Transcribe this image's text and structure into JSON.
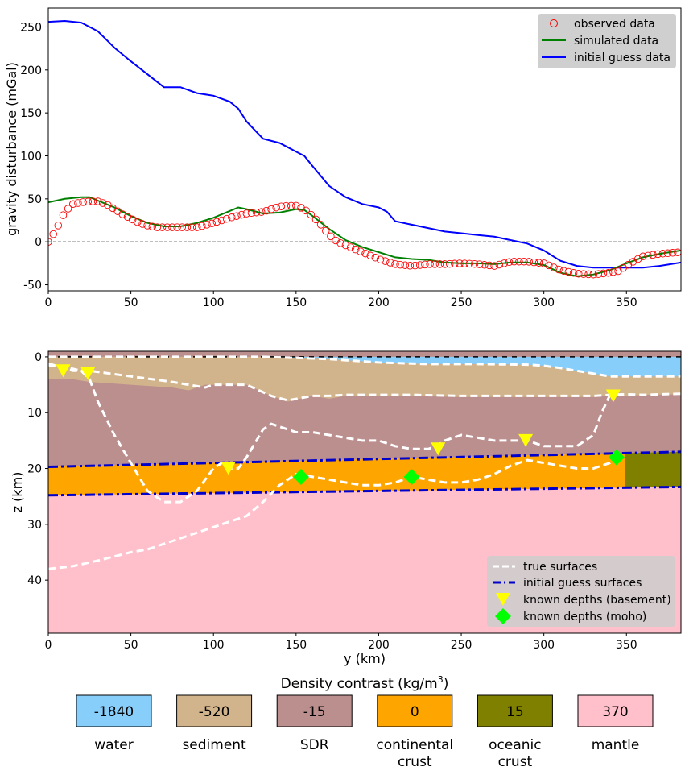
{
  "chart_data": [
    {
      "type": "line",
      "ylabel": "gravity disturbance (mGal)",
      "xlim": [
        0,
        383
      ],
      "ylim": [
        -57,
        272
      ],
      "xticks": [
        "0",
        "50",
        "100",
        "150",
        "200",
        "250",
        "300",
        "350"
      ],
      "yticks": [
        "250",
        "200",
        "150",
        "100",
        "50",
        "0",
        "-50"
      ],
      "legend_position": "top-right",
      "zero_line": true,
      "series": [
        {
          "name": "observed data",
          "style": "open-circle",
          "color": "#ff0000",
          "x": [
            0,
            5,
            10,
            15,
            20,
            25,
            30,
            35,
            40,
            45,
            50,
            55,
            60,
            65,
            70,
            80,
            90,
            100,
            110,
            120,
            130,
            135,
            140,
            145,
            150,
            155,
            160,
            165,
            170,
            175,
            180,
            185,
            190,
            195,
            200,
            205,
            210,
            220,
            230,
            240,
            250,
            260,
            270,
            280,
            290,
            300,
            310,
            320,
            330,
            340,
            345,
            350,
            355,
            360,
            370,
            383
          ],
          "y": [
            0,
            15,
            35,
            44,
            46,
            47,
            47,
            44,
            38,
            32,
            27,
            22,
            19,
            17,
            17,
            17,
            17,
            22,
            28,
            33,
            35,
            38,
            41,
            42,
            42,
            38,
            30,
            20,
            8,
            0,
            -4,
            -8,
            -12,
            -16,
            -20,
            -23,
            -26,
            -28,
            -26,
            -26,
            -25,
            -26,
            -28,
            -23,
            -23,
            -25,
            -33,
            -37,
            -38,
            -36,
            -34,
            -28,
            -22,
            -17,
            -14,
            -12
          ]
        },
        {
          "name": "simulated data",
          "style": "line",
          "color": "#008000",
          "x": [
            0,
            10,
            20,
            25,
            30,
            40,
            50,
            60,
            70,
            80,
            90,
            100,
            110,
            115,
            120,
            130,
            140,
            150,
            155,
            160,
            170,
            180,
            190,
            200,
            210,
            220,
            230,
            240,
            250,
            260,
            270,
            280,
            290,
            300,
            310,
            320,
            330,
            340,
            350,
            360,
            370,
            383
          ],
          "y": [
            46,
            50,
            52,
            52,
            48,
            40,
            30,
            22,
            18,
            18,
            22,
            28,
            36,
            40,
            38,
            33,
            34,
            38,
            37,
            30,
            15,
            2,
            -6,
            -12,
            -18,
            -20,
            -21,
            -24,
            -25,
            -25,
            -26,
            -24,
            -24,
            -27,
            -36,
            -40,
            -38,
            -33,
            -25,
            -18,
            -14,
            -10
          ]
        },
        {
          "name": "initial guess data",
          "style": "line",
          "color": "#0000ff",
          "x": [
            0,
            10,
            20,
            30,
            40,
            50,
            60,
            70,
            80,
            90,
            100,
            110,
            115,
            120,
            125,
            130,
            140,
            145,
            150,
            155,
            160,
            170,
            180,
            190,
            200,
            205,
            210,
            220,
            230,
            240,
            250,
            260,
            270,
            280,
            290,
            300,
            310,
            320,
            330,
            340,
            350,
            360,
            370,
            383
          ],
          "y": [
            256,
            257,
            255,
            245,
            226,
            210,
            195,
            180,
            180,
            173,
            170,
            163,
            155,
            140,
            130,
            120,
            115,
            110,
            105,
            100,
            88,
            65,
            52,
            44,
            40,
            35,
            24,
            20,
            16,
            12,
            10,
            8,
            6,
            2,
            -2,
            -10,
            -22,
            -28,
            -30,
            -30,
            -30,
            -30,
            -28,
            -24
          ]
        }
      ]
    },
    {
      "type": "area",
      "xlabel": "y (km)",
      "ylabel": "z (km)",
      "xlim": [
        0,
        383
      ],
      "ylim": [
        49.5,
        -1
      ],
      "xticks": [
        "0",
        "50",
        "100",
        "150",
        "200",
        "250",
        "300",
        "350"
      ],
      "yticks": [
        "0",
        "10",
        "20",
        "30",
        "40"
      ],
      "legend_position": "bottom-right",
      "layers": [
        {
          "name": "water",
          "color": "#87cefa"
        },
        {
          "name": "sediment",
          "color": "#d2b48c"
        },
        {
          "name": "SDR",
          "color": "#bc8f8f"
        },
        {
          "name": "continental crust",
          "color": "#ffa500"
        },
        {
          "name": "oceanic crust",
          "color": "#808000"
        },
        {
          "name": "mantle",
          "color": "#ffc0cb"
        }
      ],
      "water_bottom": {
        "x": [
          0,
          100,
          130,
          150,
          170,
          200,
          230,
          260,
          290,
          300,
          310,
          320,
          340,
          360,
          383
        ],
        "y": [
          0,
          0,
          0,
          0.2,
          0.4,
          1.0,
          1.3,
          1.3,
          1.4,
          1.6,
          2.0,
          2.5,
          3.5,
          3.5,
          3.5
        ]
      },
      "sediment_bottom": {
        "x": [
          0,
          15,
          25,
          50,
          75,
          85,
          95,
          100,
          120,
          135,
          145,
          160,
          170,
          180,
          200,
          220,
          250,
          300,
          330,
          340,
          350,
          360,
          383
        ],
        "y": [
          4,
          4,
          4.5,
          5,
          5.5,
          6,
          5,
          5,
          5,
          7,
          8,
          7,
          7.5,
          7,
          7,
          7,
          7.2,
          7.2,
          7.2,
          7,
          7,
          6.8,
          6.7
        ]
      },
      "moho_top": {
        "x": [
          0,
          383
        ],
        "y": [
          19.7,
          17.0
        ]
      },
      "mantle_top": {
        "x": [
          0,
          383
        ],
        "y": [
          24.8,
          23.3
        ]
      },
      "oceanic_start_x": 349,
      "series": [
        {
          "name": "true surfaces",
          "style": "dashed",
          "color": "#ffffff",
          "lines": [
            {
              "x": [
                0,
                100,
                130,
                150,
                170,
                200,
                230,
                260,
                290,
                300,
                310,
                320,
                340,
                360,
                383
              ],
              "y": [
                0,
                0,
                0,
                0.2,
                0.4,
                1.0,
                1.3,
                1.3,
                1.4,
                1.6,
                2.0,
                2.5,
                3.5,
                3.5,
                3.5
              ]
            },
            {
              "x": [
                0,
                15,
                25,
                50,
                75,
                85,
                95,
                100,
                120,
                135,
                145,
                160,
                170,
                180,
                200,
                220,
                250,
                300,
                330,
                340,
                350,
                360,
                383
              ],
              "y": [
                1.2,
                2.5,
                2.5,
                3.5,
                4.5,
                5.0,
                5.5,
                5.0,
                5.0,
                7.0,
                7.8,
                7.0,
                7.0,
                6.8,
                6.8,
                6.8,
                7.0,
                7.0,
                7.0,
                6.8,
                6.7,
                6.8,
                6.6
              ]
            },
            {
              "x": [
                0,
                10,
                20,
                25,
                30,
                40,
                50,
                60,
                70,
                80,
                90,
                100,
                105,
                110,
                115,
                120,
                130,
                135,
                140,
                145,
                150,
                160,
                170,
                180,
                190,
                200,
                210,
                220,
                230,
                235,
                240,
                250,
                260,
                270,
                280,
                290,
                300,
                310,
                320,
                330,
                335,
                340
              ],
              "y": [
                1.5,
                1.8,
                2.5,
                4,
                8,
                14,
                19,
                24,
                26,
                26,
                24,
                20,
                19,
                20,
                20,
                18,
                13,
                12,
                12.5,
                13,
                13.5,
                13.5,
                14,
                14.5,
                15,
                15,
                16,
                16.5,
                16.5,
                16,
                15,
                14,
                14.5,
                15,
                15,
                15,
                16,
                16,
                16,
                14,
                10,
                6.8
              ]
            },
            {
              "x": [
                0,
                15,
                30,
                50,
                60,
                70,
                80,
                90,
                100,
                110,
                120,
                130,
                140,
                150,
                160,
                170,
                180,
                190,
                200,
                210,
                220,
                230,
                240,
                250,
                260,
                270,
                280,
                290,
                300,
                310,
                320,
                330,
                340,
                345
              ],
              "y": [
                38,
                37.5,
                36.5,
                35,
                34.5,
                33.5,
                32.5,
                31.5,
                30.5,
                29.5,
                28.5,
                26,
                23,
                21,
                21.5,
                22,
                22.5,
                23,
                23,
                22.5,
                21.5,
                22,
                22.5,
                22.5,
                22,
                21,
                19.5,
                18.5,
                19,
                19.5,
                20,
                20,
                19,
                18
              ]
            }
          ]
        },
        {
          "name": "initial guess surfaces",
          "style": "dash-dot",
          "color": "#0000cd"
        },
        {
          "name": "known depths (basement)",
          "style": "triangle-down",
          "color": "#ffff00",
          "x": [
            9,
            24,
            109,
            236,
            289,
            342
          ],
          "y": [
            2.5,
            3.0,
            20.0,
            16.5,
            15.0,
            7.0
          ]
        },
        {
          "name": "known depths (moho)",
          "style": "diamond",
          "color": "#00ff00",
          "x": [
            153,
            220,
            344
          ],
          "y": [
            21.5,
            21.5,
            18.0
          ]
        }
      ]
    }
  ],
  "density_legend": {
    "title": "Density contrast (kg/m",
    "title_sup": "3",
    "title_end": ")",
    "items": [
      {
        "value": "-1840",
        "label1": "water",
        "label2": "",
        "color": "#87cefa"
      },
      {
        "value": "-520",
        "label1": "sediment",
        "label2": "",
        "color": "#d2b48c"
      },
      {
        "value": "-15",
        "label1": "SDR",
        "label2": "",
        "color": "#bc8f8f"
      },
      {
        "value": "0",
        "label1": "continental",
        "label2": "crust",
        "color": "#ffa500"
      },
      {
        "value": "15",
        "label1": "oceanic",
        "label2": "crust",
        "color": "#808000"
      },
      {
        "value": "370",
        "label1": "mantle",
        "label2": "",
        "color": "#ffc0cb"
      }
    ]
  }
}
